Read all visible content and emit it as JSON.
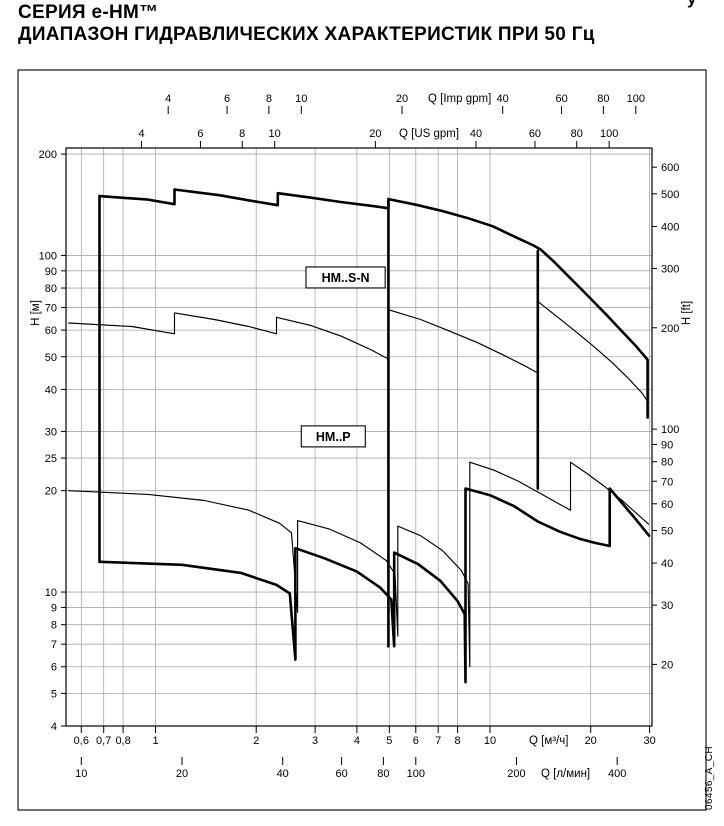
{
  "page": {
    "title_line1": "СЕРИЯ  e-HM™",
    "title_line2": "ДИАПАЗОН ГИДРАВЛИЧЕСКИХ ХАРАКТЕРИСТИК ПРИ 50 Гц",
    "corner_fragment": "у",
    "side_code": "06456_A_CH"
  },
  "chart_data": {
    "type": "line",
    "x_scale": "log",
    "y_scale": "log",
    "x_range_m3h": [
      0.54,
      30.5
    ],
    "y_range_m": [
      4.0,
      208.5
    ],
    "axes": {
      "top_imp_gpm": {
        "label": "Q [Imp gpm]",
        "ticks": [
          4,
          6,
          8,
          10,
          20,
          40,
          60,
          80,
          100
        ],
        "factor_to_m3h": 0.2728
      },
      "top_us_gpm": {
        "label": "Q [US gpm]",
        "ticks": [
          4,
          6,
          8,
          10,
          20,
          40,
          60,
          80,
          100
        ],
        "factor_to_m3h": 0.2271
      },
      "left_m": {
        "label": "H [м]",
        "ticks": [
          200,
          100,
          90,
          80,
          70,
          60,
          50,
          40,
          30,
          25,
          20,
          10,
          9,
          8,
          7,
          6,
          5,
          4
        ]
      },
      "right_ft": {
        "label": "H [ft]",
        "ticks": [
          600,
          500,
          400,
          300,
          200,
          100,
          90,
          80,
          70,
          60,
          50,
          40,
          30,
          20
        ],
        "meters_per_ft": 0.3048
      },
      "bottom_m3h": {
        "label": "Q [м³/ч]",
        "tick_labels": [
          "0,6",
          "0,7",
          "0,8",
          "1",
          "2",
          "3",
          "4",
          "5",
          "6",
          "7",
          "8",
          "10",
          "20",
          "30"
        ],
        "tick_values": [
          0.6,
          0.7,
          0.8,
          1,
          2,
          3,
          4,
          5,
          6,
          7,
          8,
          10,
          20,
          30
        ]
      },
      "bottom_lmin": {
        "label": "Q [л/мин]",
        "ticks": [
          10,
          20,
          40,
          60,
          80,
          100,
          200,
          400
        ],
        "factor_to_m3h": 0.06
      }
    },
    "gridlines": {
      "x_m3h": [
        0.6,
        0.7,
        0.8,
        1,
        2,
        3,
        4,
        5,
        6,
        7,
        8,
        10,
        20,
        30
      ],
      "y_m": [
        4,
        5,
        6,
        7,
        8,
        9,
        10,
        20,
        25,
        30,
        40,
        50,
        60,
        70,
        80,
        90,
        100,
        200
      ]
    },
    "series_labels": [
      {
        "text": "HM..S-N",
        "q": 3.7,
        "h": 86
      },
      {
        "text": "HM..P",
        "q": 3.4,
        "h": 29
      }
    ],
    "curves": [
      {
        "name": "range-left-edge",
        "weight": "thick",
        "points": [
          [
            0.68,
            150
          ],
          [
            0.68,
            12.3
          ]
        ]
      },
      {
        "name": "range-top-envelope",
        "weight": "thick",
        "points": [
          [
            0.68,
            150
          ],
          [
            0.95,
            146.5
          ],
          [
            1.14,
            142
          ],
          [
            1.14,
            157
          ],
          [
            1.55,
            151
          ],
          [
            2.0,
            144.5
          ],
          [
            2.32,
            141
          ],
          [
            2.32,
            153
          ],
          [
            2.9,
            148.5
          ],
          [
            3.6,
            144
          ],
          [
            4.5,
            140
          ],
          [
            4.97,
            138
          ],
          [
            4.97,
            147
          ],
          [
            6.0,
            141.5
          ],
          [
            7.2,
            135.5
          ],
          [
            8.6,
            129
          ],
          [
            10.2,
            122
          ],
          [
            12.0,
            113
          ],
          [
            13.5,
            107
          ],
          [
            14.2,
            104
          ],
          [
            15.5,
            96
          ],
          [
            17.0,
            87.5
          ],
          [
            18.6,
            80
          ],
          [
            20.5,
            72.5
          ],
          [
            22.5,
            66
          ],
          [
            24.8,
            59.5
          ],
          [
            27.2,
            54
          ],
          [
            29.6,
            49
          ],
          [
            29.6,
            33
          ]
        ]
      },
      {
        "name": "divider-q5",
        "weight": "thick",
        "points": [
          [
            4.97,
            147
          ],
          [
            4.97,
            6.9
          ]
        ]
      },
      {
        "name": "divider-q14",
        "weight": "thick",
        "points": [
          [
            13.9,
            103
          ],
          [
            13.9,
            20.3
          ]
        ]
      },
      {
        "name": "range-bottom-envelope",
        "weight": "thick",
        "points": [
          [
            0.68,
            12.3
          ],
          [
            1.2,
            12.05
          ],
          [
            1.8,
            11.4
          ],
          [
            2.3,
            10.5
          ],
          [
            2.52,
            9.9
          ],
          [
            2.62,
            6.3
          ],
          [
            2.62,
            13.5
          ],
          [
            3.2,
            12.6
          ],
          [
            4.0,
            11.5
          ],
          [
            4.7,
            10.3
          ],
          [
            5.07,
            9.5
          ],
          [
            5.17,
            6.9
          ],
          [
            5.17,
            13.1
          ],
          [
            6.1,
            12.1
          ],
          [
            7.1,
            10.8
          ],
          [
            8.0,
            9.4
          ],
          [
            8.4,
            8.6
          ],
          [
            8.45,
            5.4
          ],
          [
            8.45,
            20.3
          ],
          [
            10.0,
            19.4
          ],
          [
            11.8,
            18.0
          ],
          [
            13.9,
            16.2
          ],
          [
            16.2,
            15.1
          ],
          [
            18.5,
            14.4
          ],
          [
            20.6,
            14.0
          ],
          [
            22.8,
            13.7
          ],
          [
            22.8,
            20.3
          ],
          [
            24.8,
            18.4
          ],
          [
            27.2,
            16.5
          ],
          [
            29.9,
            14.7
          ]
        ]
      },
      {
        "name": "sn-mid-envelope",
        "weight": "thin",
        "points": [
          [
            0.55,
            63
          ],
          [
            0.85,
            61.5
          ],
          [
            1.14,
            58.5
          ],
          [
            1.14,
            67.5
          ],
          [
            1.5,
            64.5
          ],
          [
            1.9,
            61.5
          ],
          [
            2.3,
            58.5
          ],
          [
            2.3,
            65.5
          ],
          [
            2.9,
            62
          ],
          [
            3.6,
            57.5
          ],
          [
            4.4,
            52.5
          ],
          [
            4.95,
            49.3
          ]
        ]
      },
      {
        "name": "sn-mid-envelope-2",
        "weight": "thin",
        "points": [
          [
            4.97,
            69
          ],
          [
            6.2,
            64.5
          ],
          [
            7.6,
            59.5
          ],
          [
            9.2,
            55
          ],
          [
            11.0,
            50.5
          ],
          [
            12.7,
            47
          ],
          [
            13.85,
            44.8
          ]
        ]
      },
      {
        "name": "sn-mid-envelope-3",
        "weight": "thin",
        "points": [
          [
            13.9,
            73
          ],
          [
            15.8,
            66
          ],
          [
            18.0,
            59.5
          ],
          [
            20.5,
            53.5
          ],
          [
            23.2,
            48
          ],
          [
            26.0,
            43
          ],
          [
            28.5,
            39
          ],
          [
            29.8,
            36.5
          ]
        ]
      },
      {
        "name": "p-envelope",
        "weight": "thin",
        "points": [
          [
            0.55,
            20
          ],
          [
            0.95,
            19.5
          ],
          [
            1.4,
            18.7
          ],
          [
            1.9,
            17.5
          ],
          [
            2.35,
            16
          ],
          [
            2.55,
            15
          ],
          [
            2.66,
            8.7
          ],
          [
            2.66,
            16.3
          ],
          [
            3.3,
            15.4
          ],
          [
            4.1,
            14
          ],
          [
            4.9,
            12.4
          ],
          [
            5.2,
            11.3
          ],
          [
            5.3,
            7.4
          ],
          [
            5.3,
            15.7
          ],
          [
            6.2,
            14.7
          ],
          [
            7.2,
            13.3
          ],
          [
            8.2,
            11.6
          ],
          [
            8.6,
            10.6
          ],
          [
            8.7,
            6.0
          ],
          [
            8.7,
            24.3
          ],
          [
            10.3,
            23
          ],
          [
            12.2,
            21.3
          ],
          [
            14.3,
            19.5
          ],
          [
            16.2,
            18.2
          ],
          [
            17.4,
            17.5
          ],
          [
            17.4,
            24.3
          ],
          [
            19.5,
            22.5
          ],
          [
            22.0,
            20.6
          ],
          [
            24.7,
            18.8
          ],
          [
            27.3,
            17.2
          ],
          [
            29.8,
            15.9
          ]
        ]
      }
    ]
  }
}
